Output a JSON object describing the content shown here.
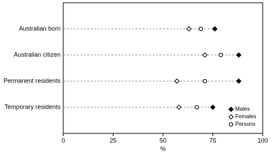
{
  "chart_data": {
    "type": "dot",
    "categories": [
      "Australian born",
      "Australian citizen",
      "Permanent residents",
      "Temporary residents"
    ],
    "series": [
      {
        "name": "Males",
        "color": "#000000",
        "marker": "filled-diamond",
        "values": [
          76,
          88,
          88,
          75
        ]
      },
      {
        "name": "Females",
        "color": "#000000",
        "marker": "open-diamond",
        "values": [
          63,
          71,
          57,
          58
        ]
      },
      {
        "name": "Persons",
        "color": "#000000",
        "marker": "open-circle",
        "values": [
          69,
          79,
          71,
          67
        ]
      }
    ],
    "x_label": "%",
    "xlim": [
      0,
      100
    ],
    "xticks": [
      0,
      25,
      50,
      75,
      100
    ],
    "legend": "lower right"
  }
}
